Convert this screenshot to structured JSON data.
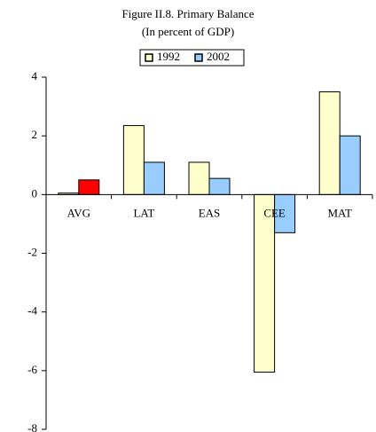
{
  "chart_data": {
    "type": "bar",
    "title": "Figure II.8. Primary Balance",
    "subtitle": "(In percent of GDP)",
    "categories": [
      "AVG",
      "LAT",
      "EAS",
      "CEE",
      "MAT"
    ],
    "series": [
      {
        "name": "1992",
        "color": "#ffffcc",
        "values": [
          0.05,
          2.35,
          1.1,
          -6.05,
          3.5
        ]
      },
      {
        "name": "2002",
        "color": "#99ccff",
        "colors": [
          "#ff0000",
          "#99ccff",
          "#99ccff",
          "#99ccff",
          "#99ccff"
        ],
        "values": [
          0.5,
          1.1,
          0.55,
          -1.3,
          2.0
        ]
      }
    ],
    "ylim": [
      -8,
      4
    ],
    "yticks": [
      -8,
      -6,
      -4,
      -2,
      0,
      2,
      4
    ],
    "grid": false,
    "legend": "top"
  }
}
